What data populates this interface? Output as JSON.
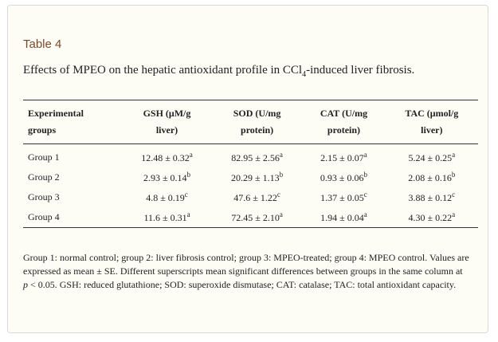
{
  "table_label": "Table 4",
  "caption": {
    "before": "Effects of MPEO on the hepatic antioxidant profile in CCl",
    "sub": "4",
    "after": "-induced liver fibrosis."
  },
  "columns": [
    {
      "line1": "Experimental",
      "line2": "groups"
    },
    {
      "line1": "GSH (μM/g",
      "line2": "liver)"
    },
    {
      "line1": "SOD (U/mg",
      "line2": "protein)"
    },
    {
      "line1": "CAT (U/mg",
      "line2": "protein)"
    },
    {
      "line1": "TAC (μmol/g",
      "line2": "liver)"
    }
  ],
  "rows": [
    {
      "group": "Group 1",
      "cells": [
        {
          "v": "12.48 ± 0.32",
          "s": "a"
        },
        {
          "v": "82.95 ± 2.56",
          "s": "a"
        },
        {
          "v": "2.15 ± 0.07",
          "s": "a"
        },
        {
          "v": "5.24 ± 0.25",
          "s": "a"
        }
      ]
    },
    {
      "group": "Group 2",
      "cells": [
        {
          "v": "2.93 ± 0.14",
          "s": "b"
        },
        {
          "v": "20.29 ± 1.13",
          "s": "b"
        },
        {
          "v": "0.93 ± 0.06",
          "s": "b"
        },
        {
          "v": "2.08 ± 0.16",
          "s": "b"
        }
      ]
    },
    {
      "group": "Group 3",
      "cells": [
        {
          "v": "4.8 ± 0.19",
          "s": "c"
        },
        {
          "v": "47.6 ± 1.22",
          "s": "c"
        },
        {
          "v": "1.37 ± 0.05",
          "s": "c"
        },
        {
          "v": "3.88 ± 0.12",
          "s": "c"
        }
      ]
    },
    {
      "group": "Group 4",
      "cells": [
        {
          "v": "11.6 ± 0.31",
          "s": "a"
        },
        {
          "v": "72.45 ± 2.10",
          "s": "a"
        },
        {
          "v": "1.94 ± 0.04",
          "s": "a"
        },
        {
          "v": "4.30 ± 0.22",
          "s": "a"
        }
      ]
    }
  ],
  "footnote": {
    "part1": "Group 1: normal control; group 2: liver fibrosis control; group 3: MPEO-treated; group 4: MPEO control. Values are expressed as mean ± SE. Different superscripts mean significant differences between groups in the same column at ",
    "p": "p",
    "part2": " < 0.05. GSH: reduced glutathione; SOD: superoxide dismutase; CAT: catalase; TAC: total antioxidant capacity."
  }
}
